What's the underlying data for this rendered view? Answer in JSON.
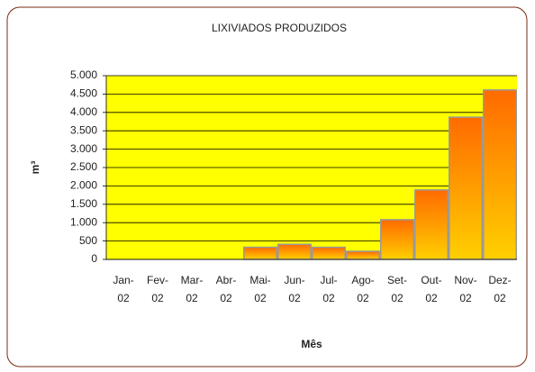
{
  "chart_data": {
    "type": "bar",
    "title": "LIXIVIADOS PRODUZIDOS",
    "y_label": "m³",
    "x_label": "Mês",
    "categories": [
      "Jan-02",
      "Fev-02",
      "Mar-02",
      "Abr-02",
      "Mai-02",
      "Jun-02",
      "Jul-02",
      "Ago-02",
      "Set-02",
      "Out-02",
      "Nov-02",
      "Dez-02"
    ],
    "values": [
      0,
      0,
      0,
      0,
      330,
      410,
      330,
      220,
      1080,
      1890,
      3870,
      4610
    ],
    "color": "#ff6a00",
    "ylim": [
      0,
      5000
    ],
    "yticks": [
      0,
      500,
      {
        "value": 1000,
        "label": "1.000"
      },
      {
        "value": 1500,
        "label": "1.500"
      },
      {
        "value": 2000,
        "label": "2.000"
      },
      {
        "value": 2500,
        "label": "2.500"
      },
      {
        "value": 3000,
        "label": "3.000"
      },
      {
        "value": 3500,
        "label": "3.500"
      },
      {
        "value": 4000,
        "label": "4.000"
      },
      {
        "value": 4500,
        "label": "4.500"
      },
      {
        "value": 5000,
        "label": "5.000"
      }
    ],
    "grid": true,
    "plot_background": "#ffff00"
  }
}
